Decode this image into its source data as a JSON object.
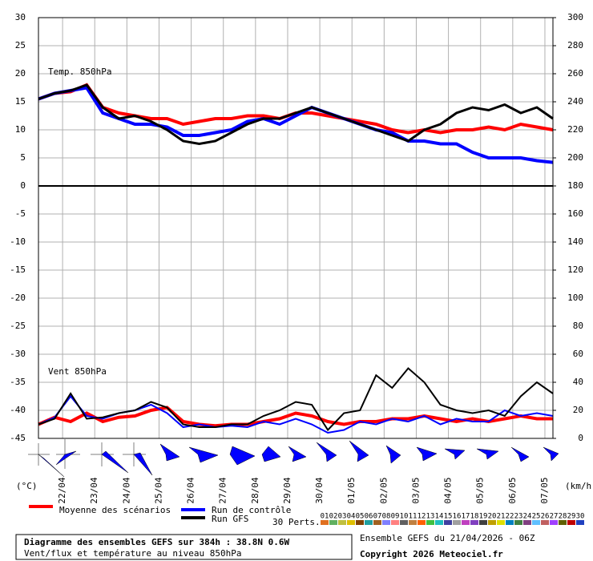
{
  "chart_data": {
    "type": "line",
    "temp_label": "Temp. 850hPa",
    "wind_label": "Vent 850hPa",
    "y_unit": "(°C)",
    "y2_unit": "(km/h)",
    "xlim": [
      0,
      384
    ],
    "xticks": [
      {
        "value": 18,
        "label": "22/04"
      },
      {
        "value": 42,
        "label": "23/04"
      },
      {
        "value": 66,
        "label": "24/04"
      },
      {
        "value": 90,
        "label": "25/04"
      },
      {
        "value": 114,
        "label": "26/04"
      },
      {
        "value": 138,
        "label": "27/04"
      },
      {
        "value": 162,
        "label": "28/04"
      },
      {
        "value": 186,
        "label": "29/04"
      },
      {
        "value": 210,
        "label": "30/04"
      },
      {
        "value": 234,
        "label": "01/05"
      },
      {
        "value": 258,
        "label": "02/05"
      },
      {
        "value": 282,
        "label": "03/05"
      },
      {
        "value": 306,
        "label": "04/05"
      },
      {
        "value": 330,
        "label": "05/05"
      },
      {
        "value": 354,
        "label": "06/05"
      },
      {
        "value": 378,
        "label": "07/05"
      }
    ],
    "ylim": [
      -45,
      30
    ],
    "yticks": [
      30,
      25,
      20,
      15,
      10,
      5,
      0,
      -5,
      -10,
      -15,
      -20,
      -25,
      -30,
      -35,
      -40,
      -45
    ],
    "y2lim": [
      0,
      300
    ],
    "y2ticks": [
      300,
      280,
      260,
      240,
      220,
      200,
      180,
      160,
      140,
      120,
      100,
      80,
      60,
      40,
      20,
      0
    ],
    "grid": true,
    "x": [
      0,
      12,
      24,
      36,
      48,
      60,
      72,
      84,
      96,
      108,
      120,
      132,
      144,
      156,
      168,
      180,
      192,
      204,
      216,
      228,
      240,
      252,
      264,
      276,
      288,
      300,
      312,
      324,
      336,
      348,
      360,
      372,
      384
    ],
    "series": [
      {
        "name": "Moyenne des scénarios",
        "color": "#ff0000",
        "width": 4,
        "values": [
          15.5,
          16.5,
          16.8,
          18,
          14,
          13,
          12.5,
          12,
          12,
          11,
          11.5,
          12,
          12,
          12.5,
          12.5,
          12,
          13,
          13,
          12.5,
          12,
          11.5,
          11,
          10,
          9.5,
          10,
          9.5,
          10,
          10,
          10.5,
          10,
          11,
          10.5,
          10
        ]
      },
      {
        "name": "Run de contrôle",
        "color": "#0000ff",
        "width": 4,
        "values": [
          15.5,
          16.5,
          17,
          17.5,
          13,
          12,
          11,
          11,
          10.5,
          9,
          9,
          9.5,
          10,
          11.5,
          12,
          11,
          12.5,
          14,
          13,
          12,
          11,
          10,
          9.5,
          8,
          8,
          7.5,
          7.5,
          6,
          5,
          5,
          5,
          4.5,
          4.2
        ]
      },
      {
        "name": "Run GFS",
        "color": "#000000",
        "width": 3,
        "values": [
          15.5,
          16.5,
          17,
          18,
          14,
          12,
          12.5,
          11.5,
          10,
          8,
          7.5,
          8,
          9.5,
          11,
          12,
          12,
          13,
          14,
          13,
          12,
          11,
          10,
          9,
          8,
          10,
          11,
          13,
          14,
          13.5,
          14.5,
          13,
          14,
          12
        ]
      }
    ],
    "wind_series": [
      {
        "axis": "y2",
        "color": "#ff0000",
        "width": 4,
        "values": [
          10,
          15,
          12,
          18,
          12,
          15,
          16,
          20,
          22,
          12,
          10,
          9,
          10,
          10,
          12,
          14,
          18,
          16,
          12,
          10,
          12,
          12,
          14,
          14,
          16,
          14,
          12,
          14,
          12,
          14,
          16,
          14,
          14
        ]
      },
      {
        "axis": "y2",
        "color": "#0000ff",
        "width": 2,
        "values": [
          10,
          15,
          30,
          16,
          14,
          18,
          20,
          24,
          18,
          8,
          10,
          8,
          9,
          8,
          12,
          10,
          14,
          10,
          4,
          6,
          12,
          10,
          14,
          12,
          16,
          10,
          14,
          12,
          12,
          20,
          16,
          18,
          16
        ]
      },
      {
        "axis": "y2",
        "color": "#000000",
        "width": 2,
        "values": [
          10,
          14,
          32,
          14,
          15,
          18,
          20,
          26,
          22,
          10,
          8,
          8,
          10,
          10,
          16,
          20,
          26,
          24,
          6,
          18,
          20,
          45,
          36,
          50,
          40,
          24,
          20,
          18,
          20,
          16,
          30,
          40,
          32
        ]
      }
    ],
    "perturbations": {
      "label": "30 Perts.",
      "items": [
        {
          "name": "01",
          "color": "#e07020"
        },
        {
          "name": "02",
          "color": "#60b060"
        },
        {
          "name": "03",
          "color": "#c0c040"
        },
        {
          "name": "04",
          "color": "#e0c000"
        },
        {
          "name": "05",
          "color": "#804000"
        },
        {
          "name": "06",
          "color": "#20a0a0"
        },
        {
          "name": "07",
          "color": "#a06020"
        },
        {
          "name": "08",
          "color": "#8080ff"
        },
        {
          "name": "09",
          "color": "#ff8080"
        },
        {
          "name": "10",
          "color": "#606060"
        },
        {
          "name": "11",
          "color": "#c08040"
        },
        {
          "name": "12",
          "color": "#ff6000"
        },
        {
          "name": "13",
          "color": "#40c040"
        },
        {
          "name": "14",
          "color": "#20c0c0"
        },
        {
          "name": "15",
          "color": "#4040a0"
        },
        {
          "name": "16",
          "color": "#a0a0a0"
        },
        {
          "name": "17",
          "color": "#c040c0"
        },
        {
          "name": "18",
          "color": "#8040c0"
        },
        {
          "name": "19",
          "color": "#404040"
        },
        {
          "name": "20",
          "color": "#c0a000"
        },
        {
          "name": "21",
          "color": "#e0e000"
        },
        {
          "name": "22",
          "color": "#0080c0"
        },
        {
          "name": "23",
          "color": "#408040"
        },
        {
          "name": "24",
          "color": "#804080"
        },
        {
          "name": "25",
          "color": "#60c0ff"
        },
        {
          "name": "26",
          "color": "#c06060"
        },
        {
          "name": "27",
          "color": "#a040ff"
        },
        {
          "name": "28",
          "color": "#606000"
        },
        {
          "name": "29",
          "color": "#c00000"
        },
        {
          "name": "30",
          "color": "#2040c0"
        }
      ]
    },
    "title": "Diagramme des ensembles GEFS sur 384h : 38.8N 0.6W",
    "subtitle": "Vent/flux et température au niveau 850hPa",
    "run_info": "Ensemble GEFS du 21/04/2026 - 06Z",
    "copyright": "Copyright 2026 Meteociel.fr"
  }
}
